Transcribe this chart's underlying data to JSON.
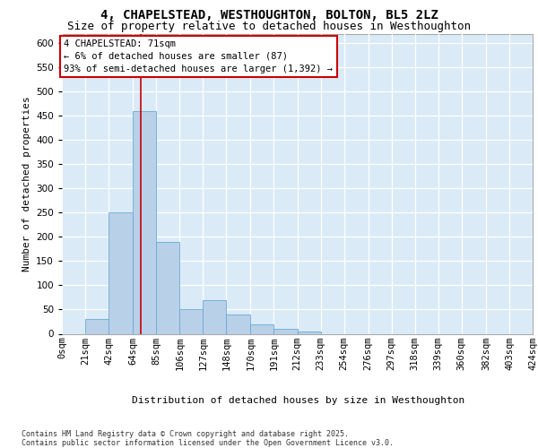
{
  "title": "4, CHAPELSTEAD, WESTHOUGHTON, BOLTON, BL5 2LZ",
  "subtitle": "Size of property relative to detached houses in Westhoughton",
  "xlabel": "Distribution of detached houses by size in Westhoughton",
  "ylabel": "Number of detached properties",
  "bin_edges": [
    0,
    21,
    42,
    64,
    85,
    106,
    127,
    148,
    170,
    191,
    212,
    233,
    254,
    276,
    297,
    318,
    339,
    360,
    382,
    403,
    424
  ],
  "bar_heights": [
    0,
    30,
    250,
    460,
    190,
    50,
    70,
    40,
    20,
    10,
    5,
    0,
    0,
    0,
    0,
    0,
    0,
    0,
    0,
    0
  ],
  "bar_color": "#b8d0e8",
  "bar_edge_color": "#6aaad4",
  "bg_color": "#daeaf7",
  "grid_color": "#ffffff",
  "property_size": 71,
  "annotation_text": "4 CHAPELSTEAD: 71sqm\n← 6% of detached houses are smaller (87)\n93% of semi-detached houses are larger (1,392) →",
  "vline_color": "#cc0000",
  "ann_box_facecolor": "#ffffff",
  "ann_box_edgecolor": "#cc0000",
  "ylim": [
    0,
    620
  ],
  "yticks": [
    0,
    50,
    100,
    150,
    200,
    250,
    300,
    350,
    400,
    450,
    500,
    550,
    600
  ],
  "footer": "Contains HM Land Registry data © Crown copyright and database right 2025.\nContains public sector information licensed under the Open Government Licence v3.0.",
  "title_fontsize": 10,
  "subtitle_fontsize": 9,
  "axis_label_fontsize": 8,
  "tick_fontsize": 7.5,
  "footer_fontsize": 6,
  "ann_fontsize": 7.5
}
